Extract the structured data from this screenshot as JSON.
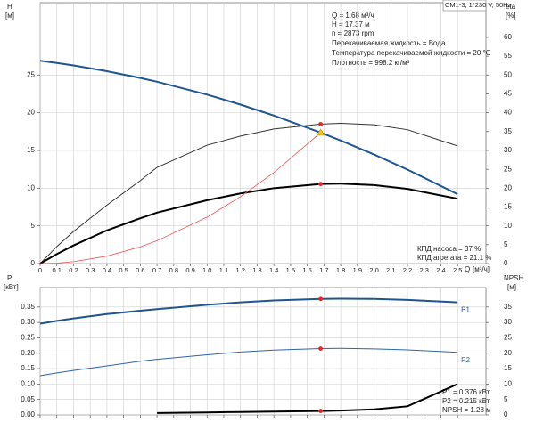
{
  "chart_data": [
    {
      "type": "line",
      "title": "CM1-3, 1*230 V, 50Hz",
      "xlabel": "Q",
      "xunit": "[м³/ч]",
      "ylabel": "H",
      "yunit": "[м]",
      "y2label": "eta",
      "y2unit": "[%]",
      "x": [
        0,
        0.1,
        0.2,
        0.4,
        0.6,
        0.7,
        1.0,
        1.2,
        1.4,
        1.68,
        1.8,
        2.0,
        2.2,
        2.5
      ],
      "xlim": [
        0,
        2.67
      ],
      "xticks": [
        0,
        0.1,
        0.2,
        0.3,
        0.4,
        0.5,
        0.6,
        0.7,
        0.8,
        0.9,
        {
          "value": 1,
          "label": "1.0"
        },
        1.1,
        1.2,
        1.3,
        1.4,
        1.5,
        1.6,
        1.7,
        1.8,
        1.9,
        {
          "value": 2,
          "label": "2.0"
        },
        2.1,
        2.2,
        2.3,
        2.4,
        2.5
      ],
      "ylim": [
        0,
        34.6
      ],
      "yticks": [
        0,
        5,
        10,
        15,
        20,
        25
      ],
      "y2lim": [
        0,
        69.2
      ],
      "y2ticks": [
        0,
        5,
        10,
        15,
        20,
        25,
        30,
        35,
        40,
        45,
        50,
        55,
        60
      ],
      "grid": true,
      "series": [
        {
          "color": "#1f5591",
          "width": 2,
          "values": [
            26.9,
            26.6,
            26.27,
            25.51,
            24.61,
            24.11,
            22.4,
            21.08,
            19.63,
            17.37,
            16.32,
            14.46,
            12.46,
            9.2
          ]
        },
        {
          "color": "#333333",
          "width": 1,
          "axis": "y2",
          "values": [
            0,
            4.5,
            8.5,
            15.5,
            22,
            25.5,
            31.4,
            33.8,
            35.7,
            37,
            37.2,
            36.8,
            35.5,
            31.2
          ]
        },
        {
          "color": "#000000",
          "width": 2,
          "axis": "y2",
          "values": [
            0,
            2.5,
            4.8,
            8.8,
            12,
            13.5,
            16.8,
            18.6,
            20,
            21.1,
            21.2,
            20.8,
            19.8,
            17.2
          ]
        },
        {
          "color": "#f05050",
          "width": 0.8,
          "values": [
            0,
            0.06,
            0.25,
            0.98,
            2.22,
            3.02,
            6.15,
            8.86,
            12.06,
            17.37,
            null,
            null,
            null,
            null
          ]
        }
      ],
      "duty_point": {
        "x": 1.68,
        "y": 17.37
      },
      "info": [
        "Q = 1.68 м³/ч",
        "H = 17.37 м",
        "n = 2873 rpm",
        "Перекачиваемая жидкость = Вода",
        "Температура перекачиваемой жидкости = 20 °C",
        "Плотность = 998.2 кг/м³"
      ],
      "efficiency": [
        "КПД насоса = 37 %",
        "КПД агрегата = 21.1 %"
      ]
    },
    {
      "type": "line",
      "ylabel": "P",
      "yunit": "[кВт]",
      "y2label": "NPSH",
      "y2unit": "[м]",
      "x": [
        0,
        0.1,
        0.2,
        0.4,
        0.6,
        0.7,
        1.0,
        1.2,
        1.4,
        1.68,
        1.8,
        2.0,
        2.2,
        2.5
      ],
      "xlim": [
        0,
        2.67
      ],
      "xticks": [
        0,
        0.1,
        0.2,
        0.3,
        0.4,
        0.5,
        0.6,
        0.7,
        0.8,
        0.9,
        1,
        1.1,
        1.2,
        1.3,
        1.4,
        1.5,
        1.6,
        1.7,
        1.8,
        1.9,
        2,
        2.1,
        2.2,
        2.3,
        2.4,
        2.5
      ],
      "ylim": [
        0,
        0.413
      ],
      "yticks": [
        {
          "value": 0,
          "label": "0.00"
        },
        0.05,
        {
          "value": 0.1,
          "label": "0.10"
        },
        0.15,
        {
          "value": 0.2,
          "label": "0.20"
        },
        0.25,
        {
          "value": 0.3,
          "label": "0.30"
        },
        0.35
      ],
      "y2lim": [
        0,
        41.3
      ],
      "y2ticks": [
        0,
        5,
        10,
        15,
        20,
        25,
        30,
        35
      ],
      "grid": true,
      "series": [
        {
          "name": "P1",
          "color": "#1f5591",
          "width": 2,
          "values": [
            0.296,
            0.305,
            0.313,
            0.327,
            0.338,
            0.343,
            0.357,
            0.365,
            0.371,
            0.376,
            0.377,
            0.376,
            0.373,
            0.365
          ]
        },
        {
          "name": "P2",
          "color": "#2f63a6",
          "width": 1,
          "values": [
            0.127,
            0.136,
            0.144,
            0.159,
            0.174,
            0.18,
            0.195,
            0.204,
            0.21,
            0.215,
            0.216,
            0.214,
            0.211,
            0.203
          ]
        },
        {
          "color": "#000000",
          "width": 2,
          "axis": "y2",
          "values": [
            null,
            null,
            null,
            null,
            null,
            0.6,
            0.8,
            0.95,
            1.1,
            1.28,
            1.4,
            1.8,
            2.8,
            10
          ]
        }
      ],
      "duty_point": {
        "x": 1.68
      },
      "info": [
        "P1 = 0.376 кВт",
        "P2 = 0.215 кВт",
        "NPSH = 1.28 м"
      ]
    }
  ]
}
